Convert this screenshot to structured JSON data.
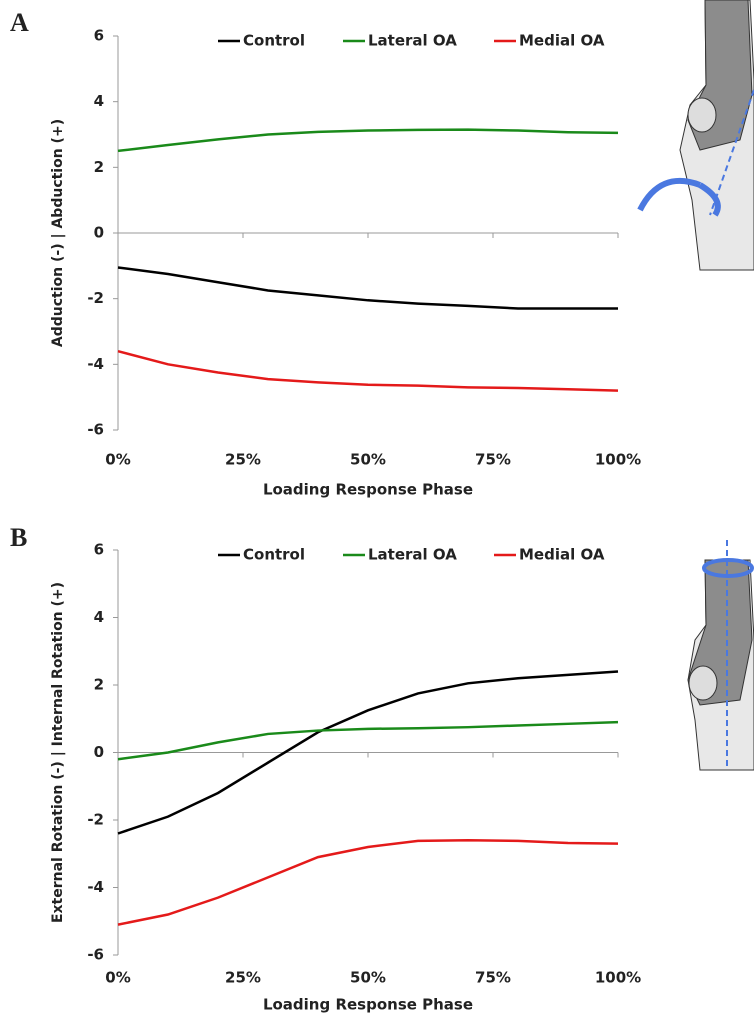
{
  "chart_data": [
    {
      "type": "line",
      "label": "A",
      "y_label": "Adduction (-) | Abduction (+)",
      "x_label": "Loading Response Phase",
      "x": [
        0,
        10,
        20,
        30,
        40,
        50,
        60,
        70,
        80,
        90,
        100
      ],
      "xlim": [
        0,
        100
      ],
      "xticks": [
        {
          "value": 0,
          "label": "0%"
        },
        {
          "value": 25,
          "label": "25%"
        },
        {
          "value": 50,
          "label": "50%"
        },
        {
          "value": 75,
          "label": "75%"
        },
        {
          "value": 100,
          "label": "100%"
        }
      ],
      "ylim": [
        -6,
        6
      ],
      "yticks": [
        -6,
        -4,
        -2,
        0,
        2,
        4,
        6
      ],
      "grid": false,
      "series": [
        {
          "name": "Control",
          "color": "#000000",
          "values": [
            -1.05,
            -1.25,
            -1.5,
            -1.75,
            -1.9,
            -2.05,
            -2.15,
            -2.22,
            -2.3,
            -2.3,
            -2.3
          ]
        },
        {
          "name": "Lateral OA",
          "color": "#1a8a1a",
          "values": [
            2.5,
            2.68,
            2.85,
            3.0,
            3.08,
            3.12,
            3.14,
            3.15,
            3.12,
            3.07,
            3.05
          ]
        },
        {
          "name": "Medial OA",
          "color": "#e41a1a",
          "values": [
            -3.6,
            -4.0,
            -4.25,
            -4.45,
            -4.55,
            -4.62,
            -4.65,
            -4.7,
            -4.72,
            -4.76,
            -4.8
          ]
        }
      ]
    },
    {
      "type": "line",
      "label": "B",
      "y_label": "External Rotation (-) | Internal Rotation (+)",
      "x_label": "Loading Response Phase",
      "x": [
        0,
        10,
        20,
        30,
        40,
        50,
        60,
        70,
        80,
        90,
        100
      ],
      "xlim": [
        0,
        100
      ],
      "xticks": [
        {
          "value": 0,
          "label": "0%"
        },
        {
          "value": 25,
          "label": "25%"
        },
        {
          "value": 50,
          "label": "50%"
        },
        {
          "value": 75,
          "label": "75%"
        },
        {
          "value": 100,
          "label": "100%"
        }
      ],
      "ylim": [
        -6,
        6
      ],
      "yticks": [
        -6,
        -4,
        -2,
        0,
        2,
        4,
        6
      ],
      "grid": false,
      "series": [
        {
          "name": "Control",
          "color": "#000000",
          "values": [
            -2.4,
            -1.9,
            -1.2,
            -0.3,
            0.6,
            1.25,
            1.75,
            2.05,
            2.2,
            2.3,
            2.4
          ]
        },
        {
          "name": "Lateral OA",
          "color": "#1a8a1a",
          "values": [
            -0.2,
            0.0,
            0.3,
            0.55,
            0.65,
            0.7,
            0.72,
            0.75,
            0.8,
            0.85,
            0.9
          ]
        },
        {
          "name": "Medial OA",
          "color": "#e41a1a",
          "values": [
            -5.1,
            -4.8,
            -4.3,
            -3.7,
            -3.1,
            -2.8,
            -2.62,
            -2.6,
            -2.62,
            -2.68,
            -2.7
          ]
        }
      ]
    }
  ]
}
